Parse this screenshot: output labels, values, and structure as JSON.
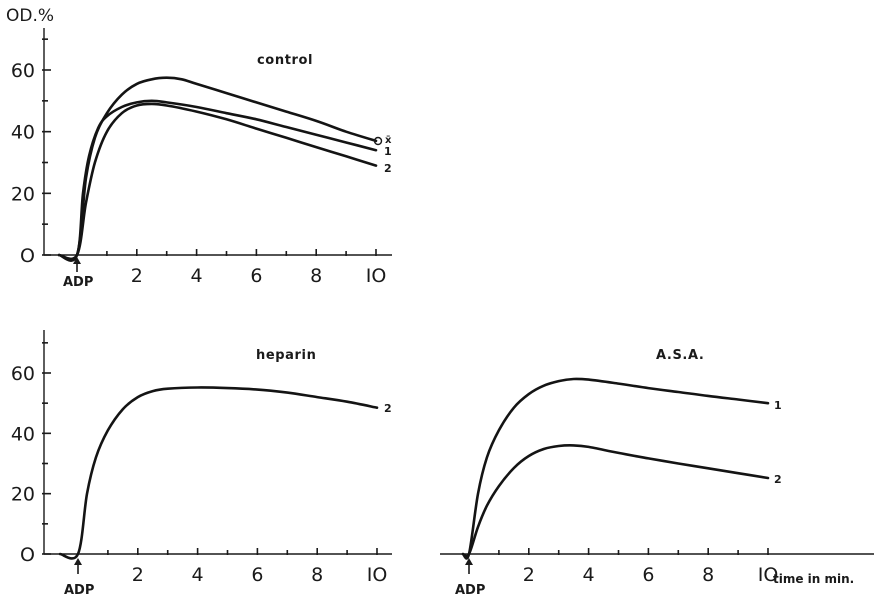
{
  "y_axis_label": "OD.%",
  "x_axis_label": "time in min.",
  "stimulus_label": "ADP",
  "chart_data": [
    {
      "type": "line",
      "title": "control",
      "xlim": [
        -1.2,
        10.6
      ],
      "ylim": [
        0,
        70
      ],
      "x_ticks": [
        "2",
        "4",
        "6",
        "8",
        "IO"
      ],
      "y_ticks": [
        "O",
        "20",
        "40",
        "60"
      ],
      "series": [
        {
          "name": "x̄",
          "x": [
            -0.6,
            0,
            0.3,
            0.6,
            1.0,
            1.5,
            2.0,
            2.5,
            3.0,
            3.5,
            4,
            5,
            6,
            7,
            8,
            9,
            10
          ],
          "y": [
            0,
            0,
            25,
            38,
            46,
            52,
            55.5,
            57,
            57.5,
            57,
            55.5,
            52.5,
            49.5,
            46.5,
            43.5,
            40,
            37
          ]
        },
        {
          "name": "1",
          "x": [
            -0.6,
            0,
            0.2,
            0.4,
            0.7,
            1.0,
            1.5,
            2.0,
            2.5,
            3,
            4,
            5,
            6,
            7,
            8,
            9,
            10
          ],
          "y": [
            0,
            0,
            20,
            32,
            41,
            45,
            48,
            49.5,
            50,
            49.5,
            48,
            46,
            44,
            41.5,
            39,
            36.5,
            34
          ]
        },
        {
          "name": "2",
          "x": [
            -0.6,
            0,
            0.3,
            0.6,
            1.0,
            1.5,
            2.0,
            2.5,
            3,
            4,
            5,
            6,
            7,
            8,
            9,
            10
          ],
          "y": [
            0,
            0,
            17,
            30,
            40,
            46,
            48.5,
            49,
            48.5,
            46.5,
            44,
            41,
            38,
            35,
            32,
            29
          ]
        }
      ],
      "series_labels": [
        "O",
        "x̄",
        "1",
        "2"
      ]
    },
    {
      "type": "line",
      "title": "heparin",
      "xlim": [
        -1.2,
        10.6
      ],
      "ylim": [
        0,
        70
      ],
      "x_ticks": [
        "2",
        "4",
        "6",
        "8",
        "IO"
      ],
      "y_ticks": [
        "O",
        "20",
        "40",
        "60"
      ],
      "series": [
        {
          "name": "2",
          "x": [
            -0.6,
            0,
            0.3,
            0.6,
            1.0,
            1.5,
            2.0,
            2.5,
            3,
            4,
            5,
            6,
            7,
            8,
            9,
            10
          ],
          "y": [
            0,
            0,
            20,
            32,
            41,
            48,
            52,
            54,
            54.8,
            55.2,
            55,
            54.5,
            53.5,
            52,
            50.5,
            48.5
          ]
        }
      ],
      "series_labels": [
        "2"
      ]
    },
    {
      "type": "line",
      "title": "A.S.A.",
      "xlim": [
        -0.6,
        12.8
      ],
      "ylim": [
        0,
        70
      ],
      "x_ticks": [
        "2",
        "4",
        "6",
        "8",
        "IO"
      ],
      "y_ticks": [],
      "series": [
        {
          "name": "1",
          "x": [
            -0.2,
            0,
            0.3,
            0.6,
            1.0,
            1.5,
            2.0,
            2.5,
            3,
            3.5,
            4,
            5,
            6,
            7,
            8,
            9,
            10
          ],
          "y": [
            0,
            0,
            20,
            32,
            41,
            48.5,
            53,
            55.8,
            57.3,
            58,
            57.8,
            56.5,
            55,
            53.7,
            52.4,
            51.2,
            50
          ]
        },
        {
          "name": "2",
          "x": [
            -0.2,
            0,
            0.3,
            0.6,
            1.0,
            1.5,
            2.0,
            2.5,
            3,
            3.5,
            4,
            5,
            6,
            7,
            8,
            9,
            10
          ],
          "y": [
            0,
            0,
            9,
            16,
            22.5,
            28.5,
            32.5,
            34.8,
            35.8,
            36,
            35.5,
            33.5,
            31.7,
            30,
            28.4,
            26.8,
            25.2
          ]
        }
      ],
      "series_labels": [
        "1",
        "2"
      ]
    }
  ]
}
